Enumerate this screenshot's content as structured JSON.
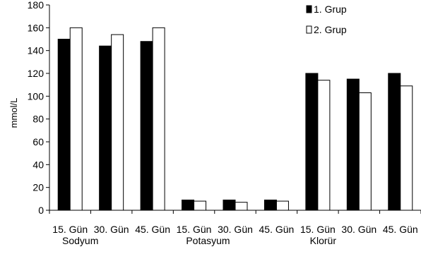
{
  "chart_data": {
    "type": "bar",
    "ylabel": "mmol/L",
    "ylim": [
      0,
      180
    ],
    "yticks": [
      0,
      20,
      40,
      60,
      80,
      100,
      120,
      140,
      160,
      180
    ],
    "categories": [
      "15. Gün",
      "30. Gün",
      "45. Gün",
      "15. Gün",
      "30. Gün",
      "45. Gün",
      "15. Gün",
      "30. Gün",
      "45. Gün"
    ],
    "groups": [
      "Sodyum",
      "Potasyum",
      "Klorür"
    ],
    "series": [
      {
        "name": "1. Grup",
        "color": "#000000",
        "values": [
          150,
          144,
          148,
          9,
          9,
          9,
          120,
          115,
          120
        ]
      },
      {
        "name": "2. Grup",
        "color": "#ffffff",
        "values": [
          160,
          154,
          160,
          8,
          7,
          8,
          114,
          103,
          109
        ]
      }
    ],
    "legend": "top-right",
    "grid": false
  }
}
